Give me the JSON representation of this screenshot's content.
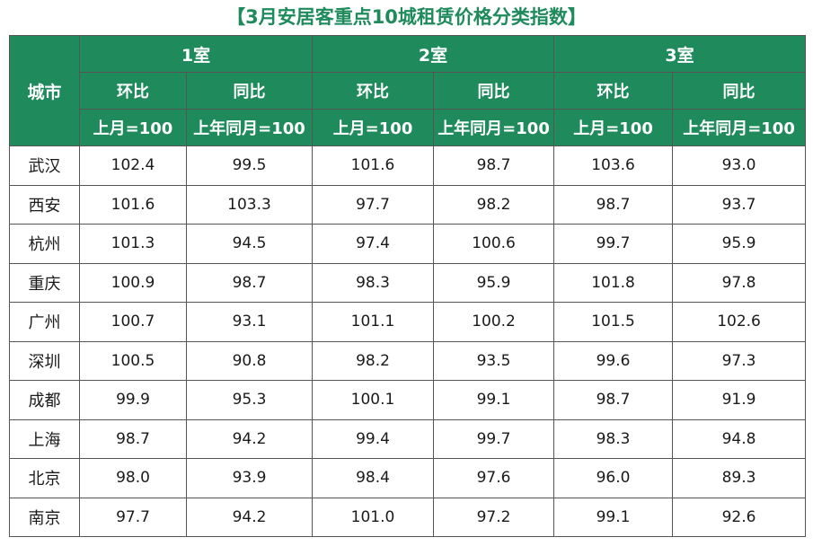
{
  "title": "【3月安居客重点10城租赁价格分类指数】",
  "chart_data": {
    "type": "table",
    "title": "【3月安居客重点10城租赁价格分类指数】",
    "city_header": "城市",
    "groups": [
      {
        "label": "1室",
        "columns": [
          {
            "label": "环比",
            "unit": "上月=100"
          },
          {
            "label": "同比",
            "unit": "上年同月=100"
          }
        ]
      },
      {
        "label": "2室",
        "columns": [
          {
            "label": "环比",
            "unit": "上月=100"
          },
          {
            "label": "同比",
            "unit": "上年同月=100"
          }
        ]
      },
      {
        "label": "3室",
        "columns": [
          {
            "label": "环比",
            "unit": "上月=100"
          },
          {
            "label": "同比",
            "unit": "上年同月=100"
          }
        ]
      }
    ],
    "rows": [
      {
        "city": "武汉",
        "values": [
          "102.4",
          "99.5",
          "101.6",
          "98.7",
          "103.6",
          "93.0"
        ]
      },
      {
        "city": "西安",
        "values": [
          "101.6",
          "103.3",
          "97.7",
          "98.2",
          "98.7",
          "93.7"
        ]
      },
      {
        "city": "杭州",
        "values": [
          "101.3",
          "94.5",
          "97.4",
          "100.6",
          "99.7",
          "95.9"
        ]
      },
      {
        "city": "重庆",
        "values": [
          "100.9",
          "98.7",
          "98.3",
          "95.9",
          "101.8",
          "97.8"
        ]
      },
      {
        "city": "广州",
        "values": [
          "100.7",
          "93.1",
          "101.1",
          "100.2",
          "101.5",
          "102.6"
        ]
      },
      {
        "city": "深圳",
        "values": [
          "100.5",
          "90.8",
          "98.2",
          "93.5",
          "99.6",
          "97.3"
        ]
      },
      {
        "city": "成都",
        "values": [
          "99.9",
          "95.3",
          "100.1",
          "99.1",
          "98.7",
          "91.9"
        ]
      },
      {
        "city": "上海",
        "values": [
          "98.7",
          "94.2",
          "99.4",
          "99.7",
          "98.3",
          "94.8"
        ]
      },
      {
        "city": "北京",
        "values": [
          "98.0",
          "93.9",
          "98.4",
          "97.6",
          "96.0",
          "89.3"
        ]
      },
      {
        "city": "南京",
        "values": [
          "97.7",
          "94.2",
          "101.0",
          "97.2",
          "99.1",
          "92.6"
        ]
      }
    ]
  },
  "colors": {
    "header_bg": "#1f8a5b",
    "header_text": "#ffffff",
    "title_text": "#1f8a5b",
    "border": "#555555"
  }
}
